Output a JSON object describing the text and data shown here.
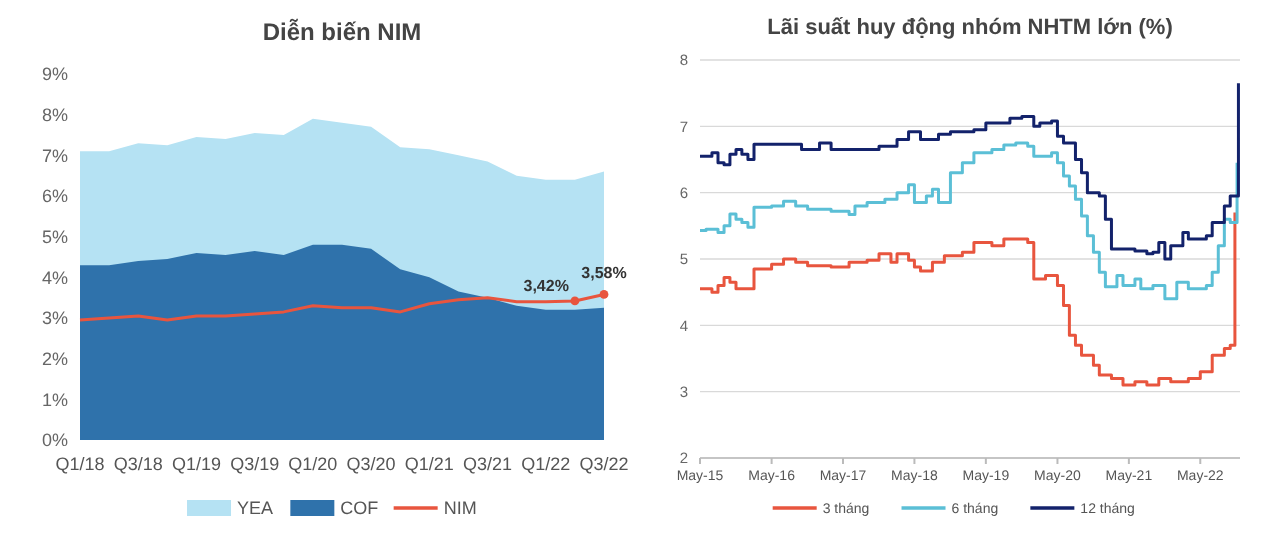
{
  "chart_data": [
    {
      "type": "area",
      "title": "Diễn biến NIM",
      "categories": [
        "Q1/18",
        null,
        "Q3/18",
        null,
        "Q1/19",
        null,
        "Q3/19",
        null,
        "Q1/20",
        null,
        "Q3/20",
        null,
        "Q1/21",
        null,
        "Q3/21",
        null,
        "Q1/22",
        null,
        "Q3/22"
      ],
      "series": [
        {
          "name": "YEA",
          "color": "#b5e2f3",
          "values": [
            7.1,
            7.1,
            7.3,
            7.25,
            7.45,
            7.4,
            7.55,
            7.5,
            7.9,
            7.8,
            7.7,
            7.2,
            7.15,
            7.0,
            6.85,
            6.5,
            6.4,
            6.4,
            6.6
          ]
        },
        {
          "name": "COF",
          "color": "#2f72ab",
          "values": [
            4.3,
            4.3,
            4.4,
            4.45,
            4.6,
            4.55,
            4.65,
            4.55,
            4.8,
            4.8,
            4.7,
            4.2,
            4.0,
            3.65,
            3.5,
            3.3,
            3.2,
            3.2,
            3.25
          ]
        },
        {
          "name": "NIM",
          "type": "line",
          "color": "#e8553e",
          "values": [
            2.95,
            3.0,
            3.05,
            2.95,
            3.05,
            3.05,
            3.1,
            3.15,
            3.3,
            3.25,
            3.25,
            3.15,
            3.35,
            3.45,
            3.5,
            3.4,
            3.4,
            3.42,
            3.58
          ],
          "value_labels": [
            null,
            null,
            null,
            null,
            null,
            null,
            null,
            null,
            null,
            null,
            null,
            null,
            null,
            null,
            null,
            null,
            null,
            "3,42%",
            "3,58%"
          ]
        }
      ],
      "ylim": [
        0,
        9
      ],
      "yticks": [
        {
          "value": 0,
          "label": "0%"
        },
        {
          "value": 1,
          "label": "1%"
        },
        {
          "value": 2,
          "label": "2%"
        },
        {
          "value": 3,
          "label": "3%"
        },
        {
          "value": 4,
          "label": "4%"
        },
        {
          "value": 5,
          "label": "5%"
        },
        {
          "value": 6,
          "label": "6%"
        },
        {
          "value": 7,
          "label": "7%"
        },
        {
          "value": 8,
          "label": "8%"
        },
        {
          "value": 9,
          "label": "9%"
        }
      ],
      "legend": "bottom"
    },
    {
      "type": "step",
      "title": "Lãi suất huy động nhóm NHTM lớn (%)",
      "series": [
        {
          "name": "3 tháng",
          "color": "#e8553e",
          "x": [
            "2015-05",
            "2015-07",
            "2015-08",
            "2015-09",
            "2015-10",
            "2015-11",
            "2016-02",
            "2016-05",
            "2016-07",
            "2016-09",
            "2016-11",
            "2017-03",
            "2017-06",
            "2017-09",
            "2017-11",
            "2018-01",
            "2018-02",
            "2018-04",
            "2018-05",
            "2018-06",
            "2018-08",
            "2018-10",
            "2019-01",
            "2019-03",
            "2019-06",
            "2019-08",
            "2019-10",
            "2019-12",
            "2020-01",
            "2020-03",
            "2020-05",
            "2020-06",
            "2020-07",
            "2020-08",
            "2020-09",
            "2020-11",
            "2020-12",
            "2021-02",
            "2021-04",
            "2021-06",
            "2021-08",
            "2021-10",
            "2021-12",
            "2022-03",
            "2022-05",
            "2022-07",
            "2022-09",
            "2022-10",
            "2022-10-25"
          ],
          "values": [
            4.55,
            4.5,
            4.6,
            4.72,
            4.65,
            4.55,
            4.85,
            4.92,
            5.0,
            4.95,
            4.9,
            4.88,
            4.95,
            4.98,
            5.08,
            4.95,
            5.08,
            4.98,
            4.88,
            4.82,
            4.95,
            5.05,
            5.1,
            5.25,
            5.2,
            5.3,
            5.3,
            5.25,
            4.7,
            4.75,
            4.6,
            4.3,
            3.85,
            3.7,
            3.55,
            3.4,
            3.25,
            3.2,
            3.1,
            3.15,
            3.1,
            3.2,
            3.15,
            3.2,
            3.3,
            3.55,
            3.65,
            3.7,
            5.7
          ]
        },
        {
          "name": "6 tháng",
          "color": "#5bbfd6",
          "x": [
            "2015-05",
            "2015-06",
            "2015-08",
            "2015-09",
            "2015-10",
            "2015-11",
            "2015-12",
            "2016-01",
            "2016-02",
            "2016-05",
            "2016-07",
            "2016-09",
            "2016-11",
            "2017-03",
            "2017-06",
            "2017-07",
            "2017-09",
            "2017-12",
            "2018-02",
            "2018-04",
            "2018-05",
            "2018-07",
            "2018-08",
            "2018-09",
            "2018-11",
            "2019-01",
            "2019-03",
            "2019-06",
            "2019-08",
            "2019-10",
            "2019-12",
            "2020-01",
            "2020-04",
            "2020-05",
            "2020-06",
            "2020-07",
            "2020-08",
            "2020-09",
            "2020-10",
            "2020-11",
            "2020-12",
            "2021-01",
            "2021-03",
            "2021-04",
            "2021-06",
            "2021-07",
            "2021-09",
            "2021-11",
            "2022-01",
            "2022-03",
            "2022-06",
            "2022-07",
            "2022-08",
            "2022-09",
            "2022-10",
            "2022-11-05"
          ],
          "values": [
            5.43,
            5.45,
            5.4,
            5.5,
            5.68,
            5.6,
            5.55,
            5.48,
            5.78,
            5.8,
            5.87,
            5.8,
            5.75,
            5.72,
            5.67,
            5.8,
            5.85,
            5.9,
            6.0,
            6.12,
            5.85,
            5.95,
            6.05,
            5.85,
            6.3,
            6.45,
            6.6,
            6.65,
            6.72,
            6.75,
            6.7,
            6.55,
            6.6,
            6.45,
            6.25,
            6.1,
            5.9,
            5.65,
            5.35,
            5.1,
            4.8,
            4.58,
            4.75,
            4.6,
            4.7,
            4.55,
            4.6,
            4.4,
            4.65,
            4.55,
            4.6,
            4.8,
            5.2,
            5.6,
            5.55,
            6.45
          ]
        },
        {
          "name": "12 tháng",
          "color": "#13226b",
          "x": [
            "2015-05",
            "2015-07",
            "2015-08",
            "2015-09",
            "2015-10",
            "2015-11",
            "2015-12",
            "2016-01",
            "2016-02",
            "2016-10",
            "2017-01",
            "2017-03",
            "2017-11",
            "2018-02",
            "2018-04",
            "2018-06",
            "2018-09",
            "2018-11",
            "2019-03",
            "2019-05",
            "2019-09",
            "2019-11",
            "2020-01",
            "2020-02",
            "2020-04",
            "2020-05",
            "2020-06",
            "2020-08",
            "2020-09",
            "2020-10",
            "2020-12",
            "2021-01",
            "2021-02",
            "2021-06",
            "2021-08",
            "2021-09",
            "2021-10",
            "2021-11",
            "2021-12",
            "2022-02",
            "2022-03",
            "2022-06",
            "2022-07",
            "2022-09",
            "2022-10",
            "2022-11-12"
          ],
          "values": [
            6.55,
            6.6,
            6.45,
            6.42,
            6.58,
            6.65,
            6.58,
            6.5,
            6.73,
            6.65,
            6.75,
            6.65,
            6.7,
            6.8,
            6.92,
            6.8,
            6.88,
            6.92,
            6.95,
            7.05,
            7.12,
            7.15,
            7.0,
            7.05,
            7.08,
            6.85,
            6.75,
            6.5,
            6.3,
            6.0,
            5.95,
            5.6,
            5.15,
            5.12,
            5.08,
            5.1,
            5.25,
            5.0,
            5.2,
            5.4,
            5.3,
            5.35,
            5.55,
            5.8,
            5.95,
            7.65
          ]
        }
      ],
      "xlim": [
        "2015-05",
        "2022-11-20"
      ],
      "xticks": [
        {
          "value": "2015-05",
          "label": "May-15"
        },
        {
          "value": "2016-05",
          "label": "May-16"
        },
        {
          "value": "2017-05",
          "label": "May-17"
        },
        {
          "value": "2018-05",
          "label": "May-18"
        },
        {
          "value": "2019-05",
          "label": "May-19"
        },
        {
          "value": "2020-05",
          "label": "May-20"
        },
        {
          "value": "2021-05",
          "label": "May-21"
        },
        {
          "value": "2022-05",
          "label": "May-22"
        }
      ],
      "ylim": [
        2,
        8
      ],
      "yticks": [
        2,
        3,
        4,
        5,
        6,
        7,
        8
      ],
      "grid": "y",
      "legend": "bottom"
    }
  ]
}
